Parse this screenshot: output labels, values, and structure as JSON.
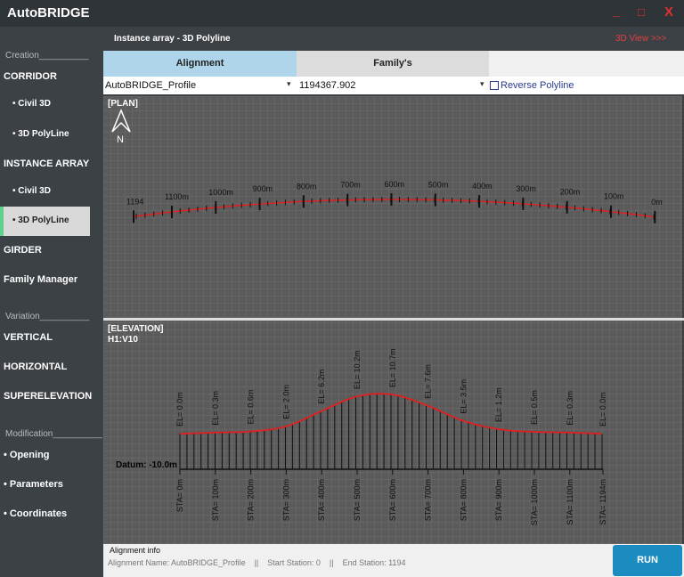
{
  "window": {
    "title": "AutoBRIDGE",
    "controls": [
      "_",
      "□",
      "X"
    ]
  },
  "sidebar": {
    "groups": [
      {
        "header": "Creation__________",
        "items": [
          "CORRIDOR",
          "•  Civil 3D",
          "•  3D PolyLine",
          "INSTANCE ARRAY",
          "•  Civil 3D",
          "•  3D PolyLine",
          "GIRDER",
          "Family Manager"
        ]
      },
      {
        "header": "Variation__________",
        "items": [
          "VERTICAL",
          "HORIZONTAL",
          "SUPERELEVATION"
        ]
      },
      {
        "header": "Modification__________",
        "items": [
          "• Opening",
          "• Parameters",
          "• Coordinates"
        ]
      }
    ]
  },
  "header": {
    "title": "Instance array - 3D Polyline",
    "link": "3D View >>>"
  },
  "tabs": [
    "Alignment",
    "Family's"
  ],
  "inputs": {
    "alignment": "AutoBRIDGE_Profile",
    "value": "1194367.902",
    "checkbox": "Reverse Polyline"
  },
  "plan": {
    "label": "[PLAN]",
    "north": "N",
    "stations": [
      "1194",
      "1100m",
      "1000m",
      "900m",
      "800m",
      "700m",
      "600m",
      "500m",
      "400m",
      "300m",
      "200m",
      "100m",
      "0m"
    ]
  },
  "elevation": {
    "label": "[ELEVATION]",
    "scale": "H1:V10",
    "datum": "Datum: -10.0m",
    "stations": [
      "STA= 0m",
      "STA= 100m",
      "STA= 200m",
      "STA= 300m",
      "STA= 400m",
      "STA= 500m",
      "STA= 600m",
      "STA= 700m",
      "STA= 800m",
      "STA= 900m",
      "STA= 1000m",
      "STA= 1100m",
      "STA= 1194m"
    ],
    "elevations": [
      "EL= 0.0m",
      "EL= 0.3m",
      "EL= 0.6m",
      "EL= 2.0m",
      "EL= 6.2m",
      "EL= 10.2m",
      "EL= 10.7m",
      "EL= 7.6m",
      "EL= 3.5m",
      "EL= 1.2m",
      "EL= 0.5m",
      "EL= 0.3m",
      "EL= 0.0m"
    ]
  },
  "footer": {
    "title": "Alignment info",
    "info": [
      "Alignment Name: AutoBRIDGE_Profile",
      "||",
      "Start Station: 0",
      "||",
      "End Station: 1194"
    ],
    "button": "RUN"
  }
}
